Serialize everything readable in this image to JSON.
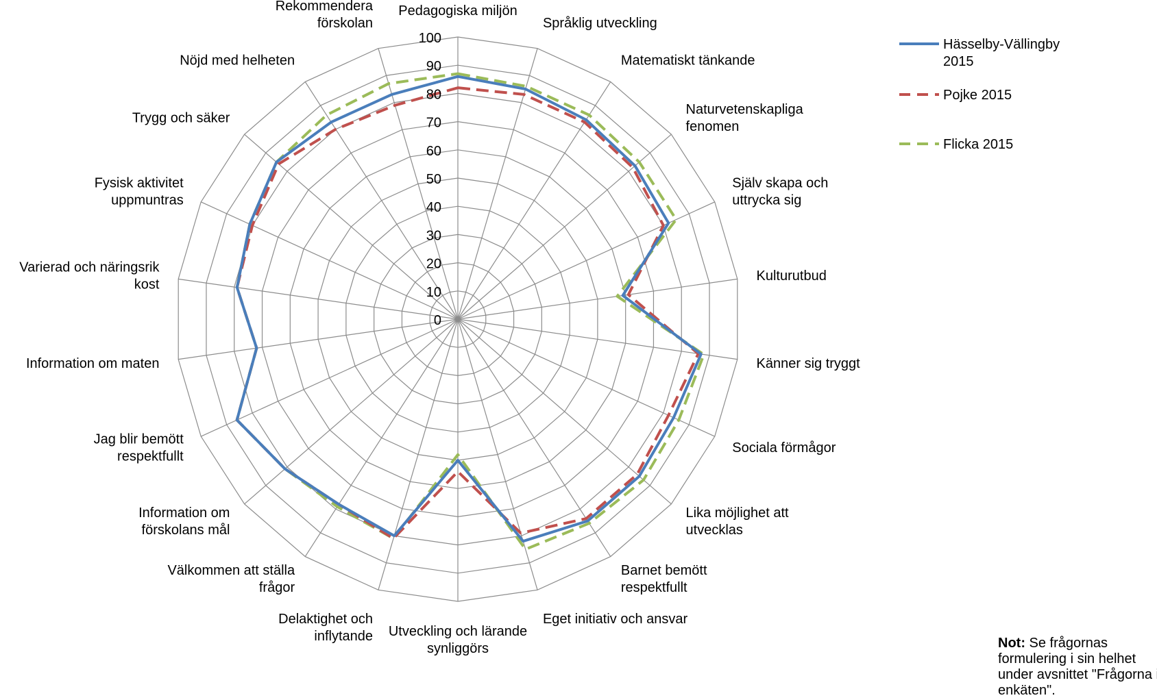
{
  "chart_data": {
    "type": "radar",
    "categories": [
      "Pedagogiska miljön",
      "Språklig utveckling",
      "Matematiskt tänkande",
      "Naturvetenskapliga\nfenomen",
      "Själv skapa och\nuttrycka sig",
      "Kulturutbud",
      "Känner sig tryggt",
      "Sociala förmågor",
      "Lika möjlighet att\nutvecklas",
      "Barnet bemött\nrespektfullt",
      "Eget initiativ och ansvar",
      "Utveckling och lärande\nsynliggörs",
      "Delaktighet och\ninflytande",
      "Välkommen att ställa\nfrågor",
      "Information om\nförskolans mål",
      "Jag blir bemött\nrespektfullt",
      "Information om maten",
      "Varierad och näringsrik\nkost",
      "Fysisk aktivitet\nuppmuntras",
      "Trygg och säker",
      "Nöjd med helheten",
      "Rekommendera\nförskolan"
    ],
    "series": [
      {
        "name": "Hässelby-Vällingby\n2015",
        "color": "#4a7ebb",
        "dash": "solid",
        "values": [
          86,
          85,
          84,
          83,
          82,
          59,
          87,
          84,
          85,
          85,
          82,
          50,
          80,
          78,
          81,
          86,
          72,
          79,
          81,
          85,
          83,
          83
        ]
      },
      {
        "name": "Pojke 2015",
        "color": "#c0504d",
        "dash": "dash",
        "values": [
          82,
          83,
          83,
          82,
          80,
          61,
          86,
          82,
          84,
          84,
          79,
          54,
          81,
          78,
          81,
          86,
          72,
          79,
          80,
          84,
          80,
          79
        ]
      },
      {
        "name": "Flicka 2015",
        "color": "#9bbb59",
        "dash": "dash",
        "values": [
          87,
          86,
          86,
          85,
          85,
          57,
          88,
          86,
          87,
          86,
          85,
          48,
          81,
          79,
          81,
          86,
          72,
          79,
          81,
          85,
          86,
          87
        ]
      }
    ],
    "r_ticks": [
      "0",
      "10",
      "20",
      "30",
      "40",
      "50",
      "60",
      "70",
      "80",
      "90",
      "100"
    ],
    "rlim": [
      0,
      100
    ],
    "grid": true,
    "legend_position": "top-right"
  },
  "note": {
    "bold": "Not:",
    "text": " Se frågornas formulering i sin helhet under avsnittet \"Frågorna i enkäten\"."
  }
}
